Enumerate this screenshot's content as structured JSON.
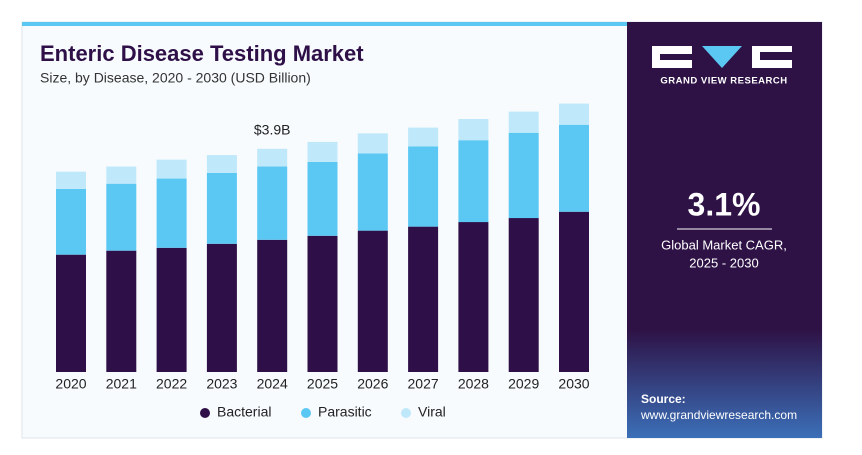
{
  "chart_data": {
    "type": "stacked_bar",
    "title": "Enteric Disease Testing Market",
    "subtitle": "Size, by Disease, 2020 - 2030 (USD Billion)",
    "annotation": "$3.9B",
    "categories": [
      "2020",
      "2021",
      "2022",
      "2023",
      "2024",
      "2025",
      "2026",
      "2027",
      "2028",
      "2029",
      "2030"
    ],
    "series": [
      {
        "name": "Bacterial",
        "color": "#2e0f47",
        "values": [
          2.05,
          2.12,
          2.17,
          2.24,
          2.31,
          2.38,
          2.47,
          2.54,
          2.62,
          2.69,
          2.8
        ]
      },
      {
        "name": "Parasitic",
        "color": "#5bc8f4",
        "values": [
          1.15,
          1.17,
          1.21,
          1.24,
          1.28,
          1.29,
          1.35,
          1.4,
          1.43,
          1.49,
          1.52
        ]
      },
      {
        "name": "Viral",
        "color": "#bfe8fa",
        "values": [
          0.3,
          0.3,
          0.33,
          0.31,
          0.31,
          0.35,
          0.35,
          0.33,
          0.37,
          0.37,
          0.37
        ]
      }
    ],
    "ylim": [
      0,
      4.7
    ],
    "grid": false,
    "legend": "bottom"
  },
  "sidebar": {
    "brand": "GRAND VIEW RESEARCH",
    "cagr": "3.1%",
    "cagr_label": [
      "Global Market CAGR,",
      "2025 - 2030"
    ],
    "source_label": "Source:",
    "source_url": "www.grandviewresearch.com"
  }
}
